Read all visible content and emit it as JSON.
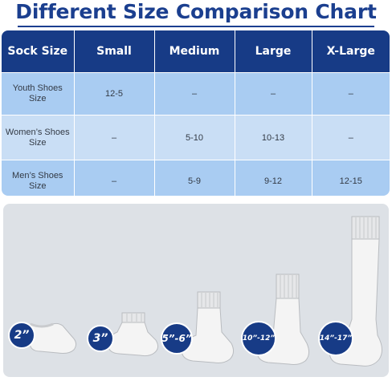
{
  "title": "Different Size Comparison Chart",
  "table": {
    "headers": [
      "Sock Size",
      "Small",
      "Medium",
      "Large",
      "X-Large"
    ],
    "rows": [
      {
        "label": "Youth Shoes Size",
        "cells": [
          "12-5",
          "–",
          "–",
          "–"
        ]
      },
      {
        "label": "Women’s Shoes Size",
        "cells": [
          "–",
          "5-10",
          "10-13",
          "–"
        ]
      },
      {
        "label": "Men’s Shoes Size",
        "cells": [
          "–",
          "5-9",
          "9-12",
          "12-15"
        ]
      }
    ]
  },
  "socks": [
    {
      "label": "2”"
    },
    {
      "label": "3”"
    },
    {
      "label": "5”-6”"
    },
    {
      "label": "10”-12”"
    },
    {
      "label": "14”-17”"
    }
  ],
  "colors": {
    "brand_navy": "#173b86",
    "title_blue": "#1b3f8f",
    "row_blue": "#a9ccf2",
    "row_light": "#c9def5",
    "panel_gray": "#dde1e6",
    "sock_white": "#f4f4f4"
  }
}
